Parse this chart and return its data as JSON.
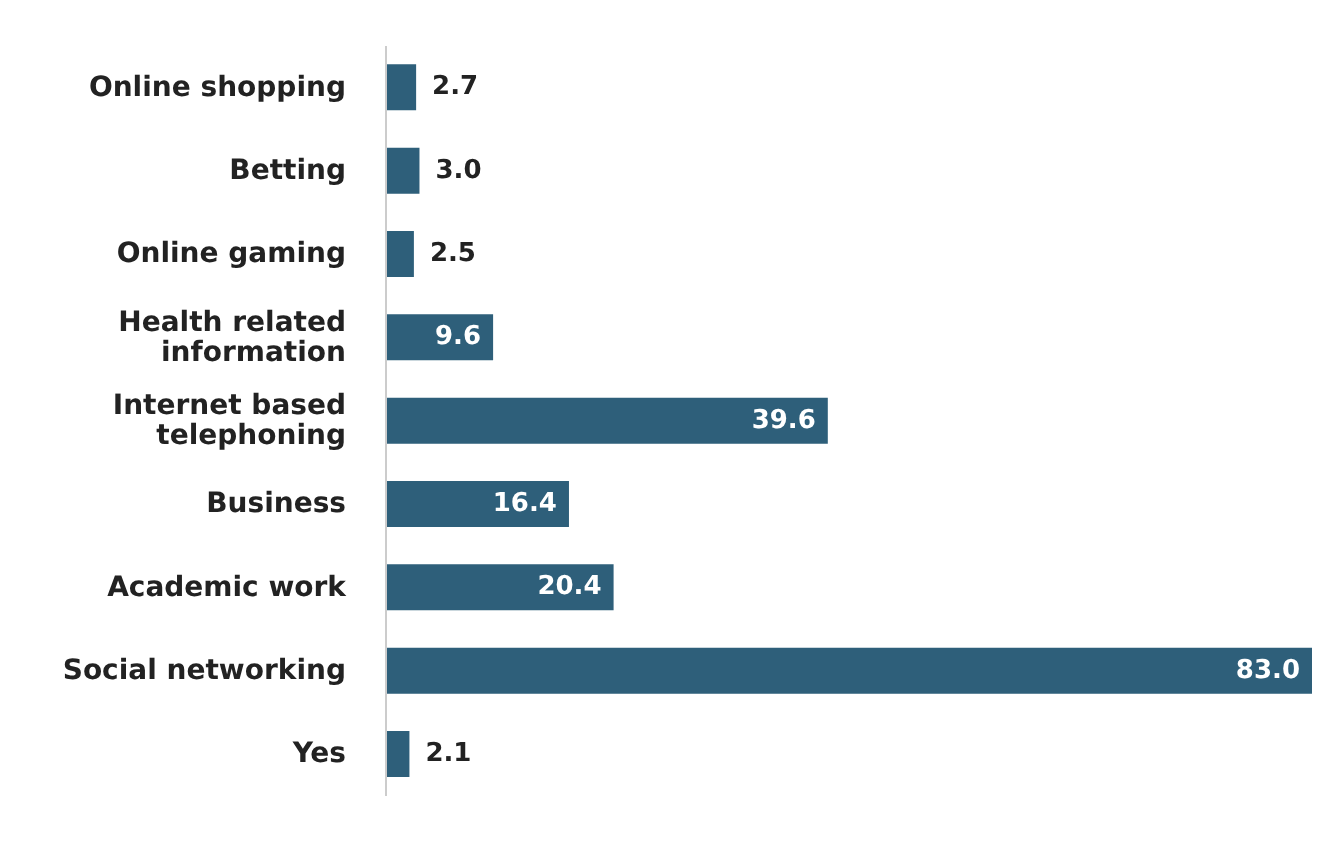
{
  "chart_data": {
    "type": "bar",
    "orientation": "horizontal",
    "categories": [
      "Online shopping",
      "Betting",
      "Online gaming",
      "Health related information",
      "Internet based telephoning",
      "Business",
      "Academic work",
      "Social networking",
      "Yes"
    ],
    "values": [
      2.7,
      3.0,
      2.5,
      9.6,
      39.6,
      16.4,
      20.4,
      83.0,
      2.1
    ],
    "value_labels": [
      "2.7",
      "3.0",
      "2.5",
      "9.6",
      "39.6",
      "16.4",
      "20.4",
      "83.0",
      "2.1"
    ],
    "color": "#2e5f7a",
    "xlim": [
      0,
      83
    ],
    "tick_labels": "y"
  }
}
